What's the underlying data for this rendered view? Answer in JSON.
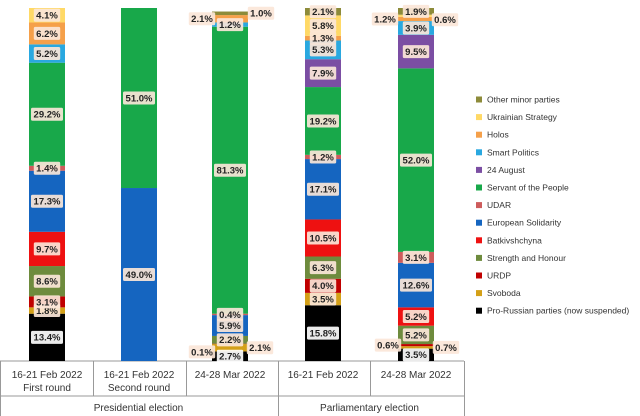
{
  "chart_data": {
    "type": "bar",
    "stacked": true,
    "normalized_percent": true,
    "groups": [
      {
        "label": "Presidential election",
        "columns": [
          0,
          1,
          2
        ]
      },
      {
        "label": "Parliamentary election",
        "columns": [
          3,
          4
        ]
      }
    ],
    "columns": [
      {
        "line1": "16-21 Feb 2022",
        "line2": "First round"
      },
      {
        "line1": "16-21 Feb 2022",
        "line2": "Second round"
      },
      {
        "line1": "24-28 Mar 2022",
        "line2": ""
      },
      {
        "line1": "16-21 Feb 2022",
        "line2": ""
      },
      {
        "line1": "24-28 Mar 2022",
        "line2": ""
      }
    ],
    "series": [
      {
        "name": "Pro-Russian parties (now suspended)",
        "color": "#000000",
        "values": [
          13.4,
          null,
          2.7,
          15.8,
          3.5
        ]
      },
      {
        "name": "Svoboda",
        "color": "#d4a017",
        "values": [
          1.8,
          null,
          2.1,
          3.5,
          0.7
        ]
      },
      {
        "name": "URDP",
        "color": "#c00000",
        "values": [
          3.1,
          null,
          0.1,
          4.0,
          0.6
        ]
      },
      {
        "name": "Strength and Honour",
        "color": "#6e8b3d",
        "values": [
          8.6,
          null,
          2.2,
          6.3,
          5.2
        ]
      },
      {
        "name": "Batkivshchyna",
        "color": "#ee1111",
        "values": [
          9.7,
          null,
          null,
          10.5,
          5.2
        ]
      },
      {
        "name": "European Solidarity",
        "color": "#1565c0",
        "values": [
          17.3,
          49.0,
          5.9,
          17.1,
          12.6
        ]
      },
      {
        "name": "UDAR",
        "color": "#cd5c5c",
        "values": [
          1.4,
          null,
          0.4,
          1.2,
          3.1
        ]
      },
      {
        "name": "Servant of the People",
        "color": "#18a84a",
        "values": [
          29.2,
          51.0,
          81.3,
          19.2,
          52.0
        ]
      },
      {
        "name": "24 August",
        "color": "#7b4ea3",
        "values": [
          null,
          null,
          null,
          7.9,
          9.5
        ]
      },
      {
        "name": "Smart Politics",
        "color": "#29a8e0",
        "values": [
          5.2,
          null,
          1.2,
          5.3,
          3.9
        ]
      },
      {
        "name": "Holos",
        "color": "#f5a04a",
        "values": [
          6.2,
          null,
          2.1,
          1.3,
          1.2
        ]
      },
      {
        "name": "Ukrainian Strategy",
        "color": "#ffd966",
        "values": [
          4.1,
          null,
          null,
          5.8,
          0.6
        ]
      },
      {
        "name": "Other minor parties",
        "color": "#8d8b3a",
        "values": [
          null,
          null,
          1.0,
          2.1,
          1.9
        ]
      }
    ],
    "ylim": [
      0,
      100
    ],
    "legend": "right",
    "grid": false
  }
}
